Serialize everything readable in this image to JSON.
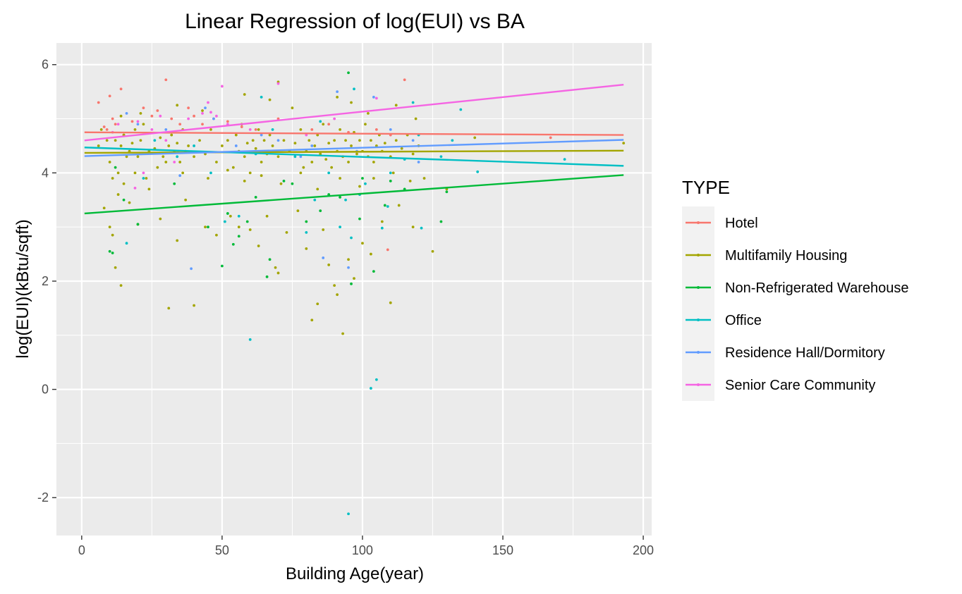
{
  "chart_data": {
    "type": "scatter",
    "title": "Linear Regression of log(EUI) vs BA",
    "xlabel": "Building Age(year)",
    "ylabel": "log(EUI)(kBtu/sqft)",
    "xlim": [
      -9,
      203
    ],
    "ylim": [
      -2.7,
      6.4
    ],
    "x_ticks": [
      0,
      50,
      100,
      150,
      200
    ],
    "y_ticks": [
      -2,
      0,
      2,
      4,
      6
    ],
    "grid": true,
    "legend": {
      "title": "TYPE",
      "placement": "right"
    },
    "series": [
      {
        "name": "Hotel",
        "color": "#F8766D",
        "fit": {
          "x": [
            1,
            193
          ],
          "y": [
            4.75,
            4.7
          ]
        },
        "points": [
          [
            6,
            5.3
          ],
          [
            8,
            4.85
          ],
          [
            9,
            4.8
          ],
          [
            10,
            5.42
          ],
          [
            11,
            5.0
          ],
          [
            12,
            4.9
          ],
          [
            14,
            5.55
          ],
          [
            15,
            4.7
          ],
          [
            18,
            4.95
          ],
          [
            22,
            5.2
          ],
          [
            25,
            5.05
          ],
          [
            27,
            5.15
          ],
          [
            30,
            5.72
          ],
          [
            32,
            5.0
          ],
          [
            35,
            4.9
          ],
          [
            38,
            5.2
          ],
          [
            40,
            5.05
          ],
          [
            43,
            4.9
          ],
          [
            47,
            5.0
          ],
          [
            52,
            4.95
          ],
          [
            57,
            4.85
          ],
          [
            62,
            4.8
          ],
          [
            70,
            5.0
          ],
          [
            82,
            4.8
          ],
          [
            88,
            4.9
          ],
          [
            95,
            4.75
          ],
          [
            105,
            4.8
          ],
          [
            110,
            4.7
          ],
          [
            115,
            5.72
          ],
          [
            109,
            2.58
          ],
          [
            167,
            4.65
          ]
        ]
      },
      {
        "name": "Multifamily Housing",
        "color": "#A3A500",
        "fit": {
          "x": [
            1,
            193
          ],
          "y": [
            4.37,
            4.41
          ]
        },
        "points": [
          [
            8,
            3.35
          ],
          [
            10,
            3.0
          ],
          [
            11,
            2.85
          ],
          [
            12,
            2.25
          ],
          [
            14,
            1.92
          ],
          [
            17,
            3.45
          ],
          [
            20,
            3.05
          ],
          [
            24,
            3.7
          ],
          [
            28,
            3.15
          ],
          [
            31,
            1.5
          ],
          [
            34,
            2.75
          ],
          [
            37,
            3.5
          ],
          [
            40,
            1.55
          ],
          [
            44,
            3.0
          ],
          [
            48,
            2.85
          ],
          [
            53,
            3.2
          ],
          [
            56,
            3.0
          ],
          [
            60,
            2.95
          ],
          [
            63,
            2.65
          ],
          [
            66,
            3.2
          ],
          [
            69,
            2.25
          ],
          [
            70,
            2.15
          ],
          [
            73,
            2.9
          ],
          [
            77,
            3.3
          ],
          [
            80,
            2.6
          ],
          [
            82,
            1.28
          ],
          [
            84,
            1.58
          ],
          [
            86,
            2.95
          ],
          [
            88,
            2.3
          ],
          [
            90,
            1.92
          ],
          [
            91,
            1.75
          ],
          [
            93,
            1.03
          ],
          [
            95,
            2.4
          ],
          [
            97,
            2.05
          ],
          [
            100,
            2.7
          ],
          [
            103,
            2.5
          ],
          [
            107,
            3.1
          ],
          [
            110,
            1.6
          ],
          [
            113,
            3.4
          ],
          [
            118,
            3.0
          ],
          [
            122,
            3.9
          ],
          [
            125,
            2.55
          ],
          [
            130,
            3.7
          ],
          [
            140,
            4.65
          ],
          [
            193,
            4.55
          ],
          [
            6,
            4.5
          ],
          [
            7,
            4.8
          ],
          [
            9,
            4.6
          ],
          [
            10,
            4.2
          ],
          [
            11,
            3.9
          ],
          [
            12,
            4.6
          ],
          [
            13,
            4.0
          ],
          [
            14,
            4.5
          ],
          [
            15,
            4.7
          ],
          [
            16,
            4.3
          ],
          [
            17,
            4.4
          ],
          [
            18,
            4.55
          ],
          [
            19,
            4.8
          ],
          [
            20,
            4.3
          ],
          [
            21,
            4.6
          ],
          [
            22,
            4.9
          ],
          [
            24,
            4.4
          ],
          [
            26,
            4.45
          ],
          [
            28,
            4.65
          ],
          [
            29,
            4.3
          ],
          [
            30,
            4.2
          ],
          [
            31,
            4.5
          ],
          [
            32,
            4.7
          ],
          [
            33,
            4.4
          ],
          [
            34,
            4.55
          ],
          [
            35,
            4.2
          ],
          [
            36,
            4.8
          ],
          [
            37,
            4.4
          ],
          [
            38,
            4.5
          ],
          [
            40,
            4.3
          ],
          [
            42,
            4.6
          ],
          [
            44,
            4.35
          ],
          [
            46,
            4.8
          ],
          [
            48,
            4.2
          ],
          [
            50,
            4.5
          ],
          [
            52,
            4.6
          ],
          [
            54,
            4.1
          ],
          [
            55,
            4.7
          ],
          [
            56,
            4.4
          ],
          [
            57,
            4.9
          ],
          [
            58,
            4.3
          ],
          [
            59,
            4.55
          ],
          [
            60,
            4.0
          ],
          [
            61,
            4.6
          ],
          [
            62,
            4.45
          ],
          [
            63,
            4.8
          ],
          [
            64,
            4.2
          ],
          [
            65,
            4.6
          ],
          [
            66,
            4.35
          ],
          [
            67,
            4.7
          ],
          [
            68,
            4.5
          ],
          [
            70,
            4.3
          ],
          [
            72,
            4.6
          ],
          [
            74,
            4.4
          ],
          [
            76,
            4.55
          ],
          [
            78,
            4.8
          ],
          [
            79,
            4.1
          ],
          [
            80,
            4.4
          ],
          [
            81,
            4.6
          ],
          [
            82,
            4.2
          ],
          [
            83,
            4.5
          ],
          [
            84,
            4.7
          ],
          [
            85,
            4.35
          ],
          [
            86,
            4.9
          ],
          [
            87,
            4.25
          ],
          [
            88,
            4.55
          ],
          [
            89,
            4.1
          ],
          [
            90,
            4.6
          ],
          [
            91,
            4.4
          ],
          [
            92,
            4.8
          ],
          [
            93,
            4.3
          ],
          [
            94,
            4.6
          ],
          [
            95,
            4.2
          ],
          [
            96,
            4.5
          ],
          [
            97,
            4.75
          ],
          [
            98,
            4.35
          ],
          [
            99,
            4.6
          ],
          [
            100,
            4.4
          ],
          [
            101,
            4.9
          ],
          [
            102,
            4.3
          ],
          [
            103,
            4.6
          ],
          [
            104,
            4.2
          ],
          [
            105,
            4.5
          ],
          [
            106,
            4.7
          ],
          [
            107,
            4.4
          ],
          [
            108,
            4.55
          ],
          [
            110,
            4.3
          ],
          [
            112,
            4.6
          ],
          [
            114,
            4.45
          ],
          [
            116,
            4.7
          ],
          [
            118,
            4.35
          ],
          [
            120,
            4.5
          ],
          [
            13,
            3.6
          ],
          [
            15,
            3.8
          ],
          [
            19,
            4.0
          ],
          [
            23,
            3.9
          ],
          [
            27,
            4.1
          ],
          [
            36,
            4.0
          ],
          [
            45,
            3.9
          ],
          [
            52,
            4.05
          ],
          [
            58,
            3.85
          ],
          [
            64,
            3.95
          ],
          [
            71,
            3.8
          ],
          [
            78,
            4.0
          ],
          [
            84,
            3.7
          ],
          [
            92,
            3.9
          ],
          [
            99,
            3.75
          ],
          [
            104,
            3.9
          ],
          [
            111,
            4.0
          ],
          [
            117,
            3.85
          ],
          [
            14,
            5.05
          ],
          [
            21,
            5.1
          ],
          [
            34,
            5.25
          ],
          [
            43,
            5.15
          ],
          [
            58,
            5.45
          ],
          [
            67,
            5.35
          ],
          [
            70,
            5.68
          ],
          [
            75,
            5.2
          ],
          [
            91,
            5.4
          ],
          [
            96,
            5.3
          ],
          [
            102,
            5.1
          ],
          [
            112,
            5.25
          ],
          [
            119,
            5.0
          ]
        ]
      },
      {
        "name": "Non-Refrigerated Warehouse",
        "color": "#00BA38",
        "fit": {
          "x": [
            1,
            193
          ],
          "y": [
            3.25,
            3.96
          ]
        },
        "points": [
          [
            10,
            2.55
          ],
          [
            11,
            2.52
          ],
          [
            12,
            4.1
          ],
          [
            15,
            3.5
          ],
          [
            20,
            3.05
          ],
          [
            33,
            3.8
          ],
          [
            45,
            3.0
          ],
          [
            50,
            2.28
          ],
          [
            52,
            3.25
          ],
          [
            54,
            2.68
          ],
          [
            56,
            2.83
          ],
          [
            59,
            3.1
          ],
          [
            66,
            2.08
          ],
          [
            67,
            2.4
          ],
          [
            72,
            3.85
          ],
          [
            80,
            3.1
          ],
          [
            85,
            3.3
          ],
          [
            88,
            3.6
          ],
          [
            92,
            3.55
          ],
          [
            95,
            5.85
          ],
          [
            96,
            1.95
          ],
          [
            99,
            3.15
          ],
          [
            104,
            2.18
          ],
          [
            108,
            3.4
          ],
          [
            115,
            3.7
          ],
          [
            128,
            3.1
          ],
          [
            130,
            3.65
          ],
          [
            62,
            3.55
          ],
          [
            75,
            3.8
          ],
          [
            100,
            3.9
          ],
          [
            110,
            3.85
          ]
        ]
      },
      {
        "name": "Office",
        "color": "#00BFC4",
        "fit": {
          "x": [
            1,
            193
          ],
          "y": [
            4.47,
            4.13
          ]
        },
        "points": [
          [
            16,
            2.7
          ],
          [
            22,
            3.9
          ],
          [
            26,
            4.6
          ],
          [
            34,
            4.3
          ],
          [
            40,
            4.5
          ],
          [
            46,
            4.0
          ],
          [
            51,
            3.1
          ],
          [
            56,
            3.2
          ],
          [
            60,
            0.92
          ],
          [
            62,
            4.35
          ],
          [
            64,
            5.4
          ],
          [
            68,
            4.8
          ],
          [
            76,
            4.3
          ],
          [
            80,
            2.9
          ],
          [
            83,
            3.5
          ],
          [
            88,
            4.0
          ],
          [
            92,
            3.0
          ],
          [
            94,
            3.5
          ],
          [
            96,
            2.8
          ],
          [
            97,
            5.55
          ],
          [
            99,
            3.6
          ],
          [
            101,
            3.8
          ],
          [
            103,
            0.02
          ],
          [
            105,
            0.18
          ],
          [
            107,
            2.98
          ],
          [
            109,
            3.38
          ],
          [
            110,
            4.0
          ],
          [
            115,
            4.25
          ],
          [
            118,
            5.3
          ],
          [
            121,
            2.98
          ],
          [
            128,
            4.3
          ],
          [
            132,
            4.6
          ],
          [
            135,
            5.17
          ],
          [
            141,
            4.02
          ],
          [
            95,
            -2.3
          ],
          [
            172,
            4.25
          ],
          [
            120,
            4.7
          ],
          [
            85,
            4.95
          ]
        ]
      },
      {
        "name": "Residence Hall/Dormitory",
        "color": "#619CFF",
        "fit": {
          "x": [
            1,
            193
          ],
          "y": [
            4.31,
            4.61
          ]
        },
        "points": [
          [
            16,
            5.1
          ],
          [
            20,
            4.9
          ],
          [
            30,
            4.8
          ],
          [
            35,
            3.95
          ],
          [
            39,
            2.23
          ],
          [
            44,
            5.2
          ],
          [
            47,
            5.0
          ],
          [
            55,
            4.5
          ],
          [
            64,
            4.7
          ],
          [
            70,
            4.6
          ],
          [
            78,
            4.3
          ],
          [
            82,
            4.5
          ],
          [
            86,
            2.43
          ],
          [
            91,
            5.5
          ],
          [
            95,
            2.25
          ],
          [
            98,
            4.4
          ],
          [
            104,
            5.4
          ],
          [
            110,
            4.8
          ],
          [
            118,
            4.6
          ],
          [
            120,
            4.2
          ]
        ]
      },
      {
        "name": "Senior Care Community",
        "color": "#F564E3",
        "fit": {
          "x": [
            1,
            193
          ],
          "y": [
            4.6,
            5.63
          ]
        },
        "points": [
          [
            11,
            4.75
          ],
          [
            13,
            4.9
          ],
          [
            20,
            4.95
          ],
          [
            22,
            4.0
          ],
          [
            25,
            4.8
          ],
          [
            28,
            5.05
          ],
          [
            30,
            4.6
          ],
          [
            38,
            5.0
          ],
          [
            43,
            5.1
          ],
          [
            45,
            5.3
          ],
          [
            46,
            5.12
          ],
          [
            48,
            5.05
          ],
          [
            50,
            5.6
          ],
          [
            52,
            4.9
          ],
          [
            60,
            4.8
          ],
          [
            70,
            5.65
          ],
          [
            80,
            4.7
          ],
          [
            90,
            5.0
          ],
          [
            105,
            5.38
          ],
          [
            19,
            3.72
          ],
          [
            33,
            4.2
          ]
        ]
      }
    ]
  }
}
